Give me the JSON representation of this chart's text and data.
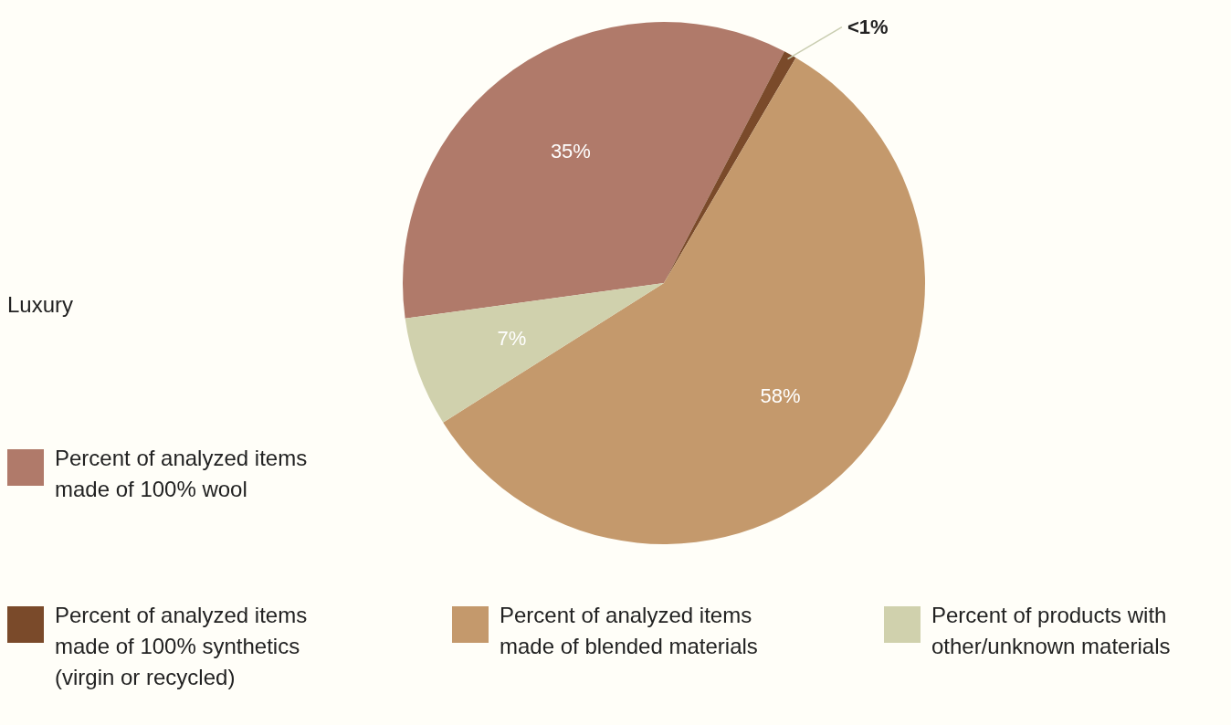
{
  "chart_data": {
    "type": "pie",
    "title": "Luxury",
    "categories": [
      "Percent of analyzed items made of 100% wool",
      "Percent of analyzed items made of 100% synthetics (virgin or recycled)",
      "Percent of analyzed items made of blended materials",
      "Percent of products with other/unknown materials"
    ],
    "values": [
      34.8,
      0.8,
      57.6,
      6.8
    ],
    "colors": [
      "#b07a6a",
      "#7a4a2a",
      "#c4996c",
      "#d0d1ad"
    ],
    "value_labels": [
      "35%",
      "<1%",
      "58%",
      "7%"
    ],
    "legend": "bottom"
  }
}
